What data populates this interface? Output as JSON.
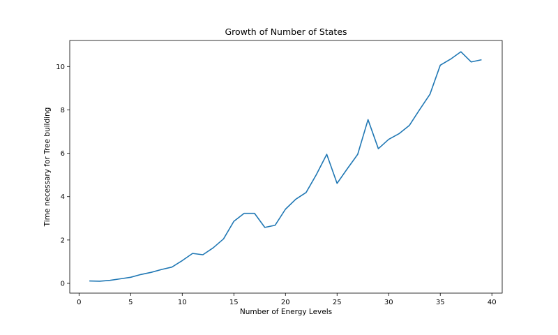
{
  "chart_data": {
    "type": "line",
    "title": "Growth of Number of States",
    "xlabel": "Number of Energy Levels",
    "ylabel": "Time necessary for Tree building",
    "xlim": [
      -0.9,
      41.0
    ],
    "ylim": [
      -0.45,
      11.2
    ],
    "xticks": [
      0,
      5,
      10,
      15,
      20,
      25,
      30,
      35,
      40
    ],
    "yticks": [
      0,
      2,
      4,
      6,
      8,
      10
    ],
    "grid": false,
    "legend": "none",
    "line_color": "#1f77b4",
    "series": [
      {
        "x": [
          1,
          2,
          3,
          4,
          5,
          6,
          7,
          8,
          9,
          10,
          11,
          12,
          13,
          14,
          15,
          16,
          17,
          18,
          19,
          20,
          21,
          22,
          23,
          24,
          25,
          26,
          27,
          28,
          29,
          30,
          31,
          32,
          33,
          34,
          35,
          36,
          37,
          38,
          39
        ],
        "values": [
          0.11,
          0.1,
          0.14,
          0.21,
          0.28,
          0.41,
          0.51,
          0.64,
          0.75,
          1.05,
          1.38,
          1.32,
          1.64,
          2.05,
          2.86,
          3.23,
          3.23,
          2.58,
          2.68,
          3.42,
          3.88,
          4.19,
          5.02,
          5.95,
          4.61,
          5.29,
          5.95,
          7.55,
          6.21,
          6.64,
          6.9,
          7.28,
          8.01,
          8.72,
          10.06,
          10.34,
          10.68,
          10.21,
          10.31
        ]
      }
    ]
  }
}
